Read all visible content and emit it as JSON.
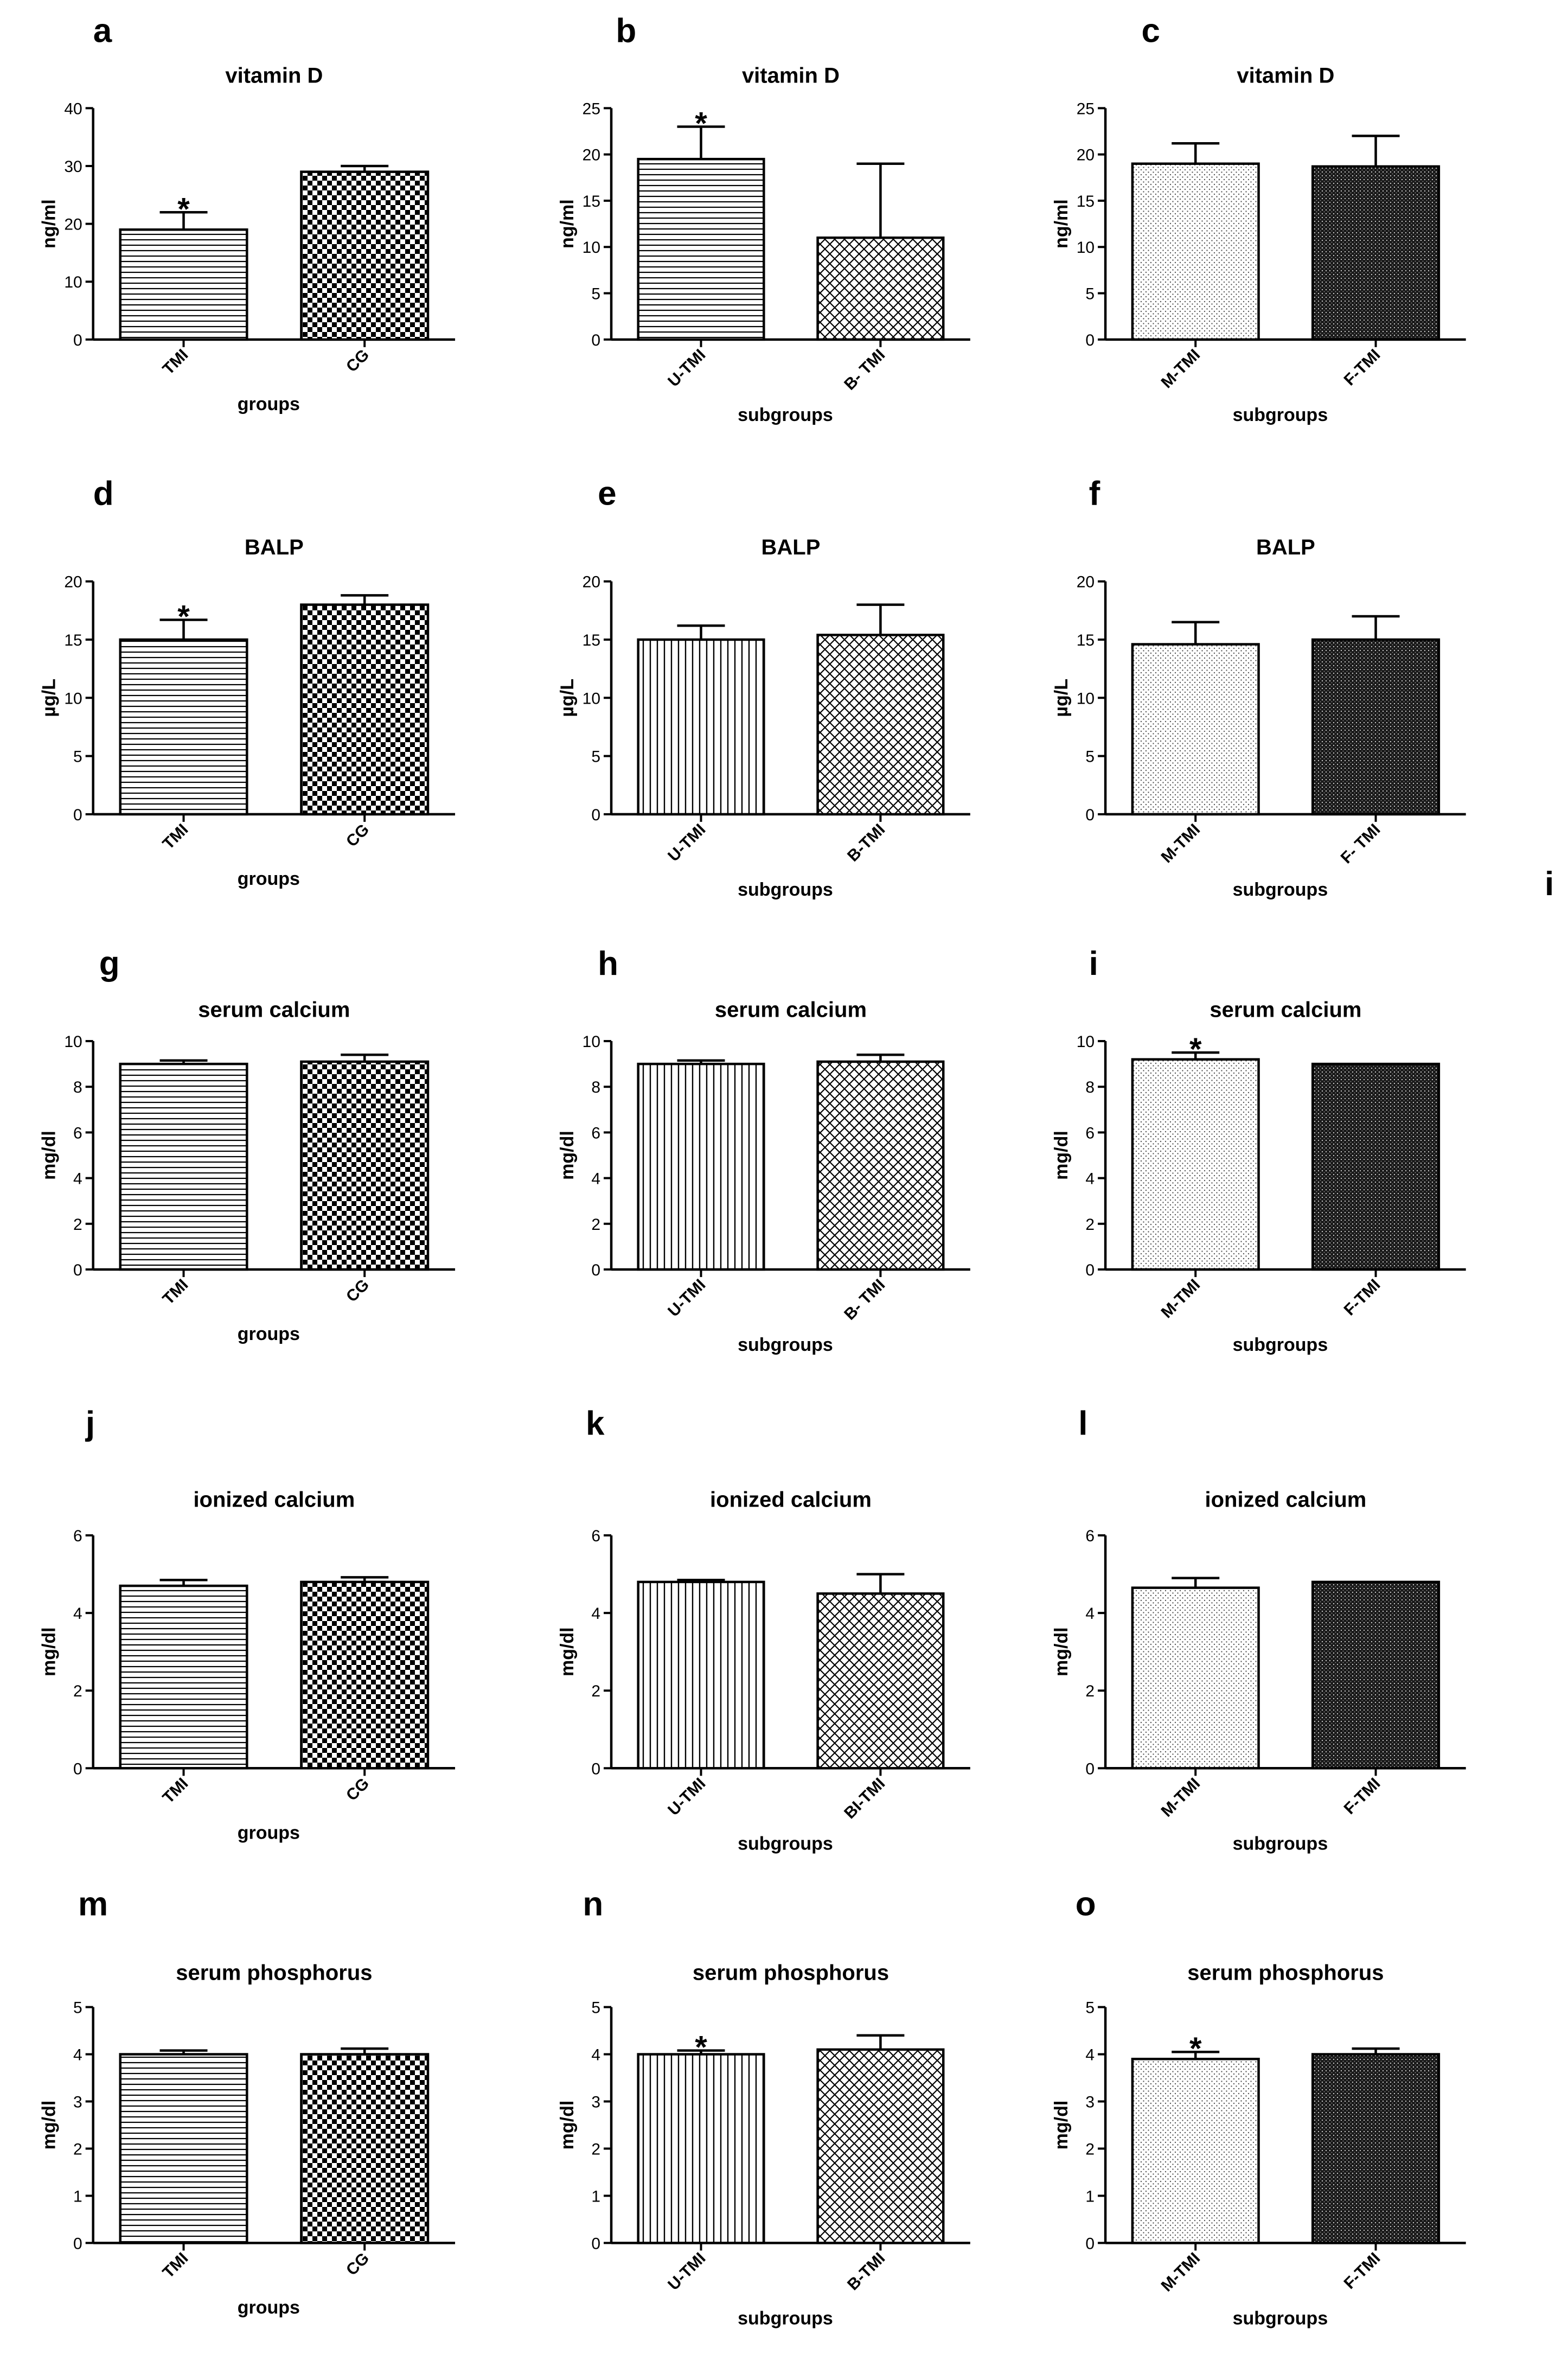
{
  "stray_label": "i",
  "chart_data": [
    {
      "panel": "a",
      "type": "bar",
      "title": "vitamin D",
      "ylabel": "ng/ml",
      "xlabel": "groups",
      "categories": [
        "TMI",
        "CG"
      ],
      "values": [
        19,
        29
      ],
      "errors": [
        3,
        1
      ],
      "significant": [
        true,
        false
      ],
      "ylim": [
        0,
        40
      ],
      "yticks": [
        0,
        10,
        20,
        30,
        40
      ],
      "patterns": [
        "hstripe",
        "check"
      ]
    },
    {
      "panel": "b",
      "type": "bar",
      "title": "vitamin D",
      "ylabel": "ng/ml",
      "xlabel": "subgroups",
      "categories": [
        "U-TMI",
        "B- TMI"
      ],
      "values": [
        19.5,
        11
      ],
      "errors": [
        3.5,
        8
      ],
      "significant": [
        true,
        false
      ],
      "ylim": [
        0,
        25
      ],
      "yticks": [
        0,
        5,
        10,
        15,
        20,
        25
      ],
      "patterns": [
        "hstripe",
        "crosshatch"
      ]
    },
    {
      "panel": "c",
      "type": "bar",
      "title": "vitamin D",
      "ylabel": "ng/ml",
      "xlabel": "subgroups",
      "categories": [
        "M-TMI",
        "F-TMI"
      ],
      "values": [
        19,
        18.7
      ],
      "errors": [
        2.2,
        3.3
      ],
      "significant": [
        false,
        false
      ],
      "ylim": [
        0,
        25
      ],
      "yticks": [
        0,
        5,
        10,
        15,
        20,
        25
      ],
      "patterns": [
        "dots",
        "darkdots"
      ]
    },
    {
      "panel": "d",
      "type": "bar",
      "title": "BALP",
      "ylabel": "µg/L",
      "xlabel": "groups",
      "categories": [
        "TMI",
        "CG"
      ],
      "values": [
        15,
        18
      ],
      "errors": [
        1.7,
        0.8
      ],
      "significant": [
        true,
        false
      ],
      "ylim": [
        0,
        20
      ],
      "yticks": [
        0,
        5,
        10,
        15,
        20
      ],
      "patterns": [
        "hstripe",
        "check"
      ]
    },
    {
      "panel": "e",
      "type": "bar",
      "title": "BALP",
      "ylabel": "µg/L",
      "xlabel": "subgroups",
      "categories": [
        "U-TMI",
        "B-TMI"
      ],
      "values": [
        15,
        15.4
      ],
      "errors": [
        1.2,
        2.6
      ],
      "significant": [
        false,
        false
      ],
      "ylim": [
        0,
        20
      ],
      "yticks": [
        0,
        5,
        10,
        15,
        20
      ],
      "patterns": [
        "vstripe",
        "crosshatch"
      ]
    },
    {
      "panel": "f",
      "type": "bar",
      "title": "BALP",
      "ylabel": "µg/L",
      "xlabel": "subgroups",
      "categories": [
        "M-TMI",
        "F- TMI"
      ],
      "values": [
        14.6,
        15
      ],
      "errors": [
        1.9,
        2
      ],
      "significant": [
        false,
        false
      ],
      "ylim": [
        0,
        20
      ],
      "yticks": [
        0,
        5,
        10,
        15,
        20
      ],
      "patterns": [
        "dots",
        "darkdots"
      ]
    },
    {
      "panel": "g",
      "type": "bar",
      "title": "serum calcium",
      "ylabel": "mg/dl",
      "xlabel": "groups",
      "categories": [
        "TMI",
        "CG"
      ],
      "values": [
        9,
        9.1
      ],
      "errors": [
        0.15,
        0.3
      ],
      "significant": [
        false,
        false
      ],
      "ylim": [
        0,
        10
      ],
      "yticks": [
        0,
        2,
        4,
        6,
        8,
        10
      ],
      "patterns": [
        "hstripe",
        "check"
      ]
    },
    {
      "panel": "h",
      "type": "bar",
      "title": "serum calcium",
      "ylabel": "mg/dl",
      "xlabel": "subgroups",
      "categories": [
        "U-TMI",
        "B- TMI"
      ],
      "values": [
        9,
        9.1
      ],
      "errors": [
        0.15,
        0.3
      ],
      "significant": [
        false,
        false
      ],
      "ylim": [
        0,
        10
      ],
      "yticks": [
        0,
        2,
        4,
        6,
        8,
        10
      ],
      "patterns": [
        "vstripe",
        "crosshatch"
      ]
    },
    {
      "panel": "i",
      "type": "bar",
      "title": "serum calcium",
      "ylabel": "mg/dl",
      "xlabel": "subgroups",
      "categories": [
        "M-TMI",
        "F-TMI"
      ],
      "values": [
        9.2,
        9
      ],
      "errors": [
        0.3,
        0
      ],
      "significant": [
        true,
        false
      ],
      "ylim": [
        0,
        10
      ],
      "yticks": [
        0,
        2,
        4,
        6,
        8,
        10
      ],
      "patterns": [
        "dots",
        "darkdots"
      ]
    },
    {
      "panel": "j",
      "type": "bar",
      "title": "ionized calcium",
      "ylabel": "mg/dl",
      "xlabel": "groups",
      "categories": [
        "TMI",
        "CG"
      ],
      "values": [
        4.7,
        4.8
      ],
      "errors": [
        0.15,
        0.12
      ],
      "significant": [
        false,
        false
      ],
      "ylim": [
        0,
        6
      ],
      "yticks": [
        0,
        2,
        4,
        6
      ],
      "patterns": [
        "hstripe",
        "check"
      ]
    },
    {
      "panel": "k",
      "type": "bar",
      "title": "ionized calcium",
      "ylabel": "mg/dl",
      "xlabel": "subgroups",
      "categories": [
        "U-TMI",
        "BI-TMI"
      ],
      "values": [
        4.8,
        4.5
      ],
      "errors": [
        0.05,
        0.5
      ],
      "significant": [
        false,
        false
      ],
      "ylim": [
        0,
        6
      ],
      "yticks": [
        0,
        2,
        4,
        6
      ],
      "patterns": [
        "vstripe",
        "crosshatch"
      ]
    },
    {
      "panel": "l",
      "type": "bar",
      "title": "ionized calcium",
      "ylabel": "mg/dl",
      "xlabel": "subgroups",
      "categories": [
        "M-TMI",
        "F-TMI"
      ],
      "values": [
        4.65,
        4.8
      ],
      "errors": [
        0.25,
        0
      ],
      "significant": [
        false,
        false
      ],
      "ylim": [
        0,
        6
      ],
      "yticks": [
        0,
        2,
        4,
        6
      ],
      "patterns": [
        "dots",
        "darkdots"
      ]
    },
    {
      "panel": "m",
      "type": "bar",
      "title": "serum phosphorus",
      "ylabel": "mg/dl",
      "xlabel": "groups",
      "categories": [
        "TMI",
        "CG"
      ],
      "values": [
        4,
        4
      ],
      "errors": [
        0.08,
        0.12
      ],
      "significant": [
        false,
        false
      ],
      "ylim": [
        0,
        5
      ],
      "yticks": [
        0,
        1,
        2,
        3,
        4,
        5
      ],
      "patterns": [
        "hstripe",
        "check"
      ]
    },
    {
      "panel": "n",
      "type": "bar",
      "title": "serum phosphorus",
      "ylabel": "mg/dl",
      "xlabel": "subgroups",
      "categories": [
        "U-TMI",
        "B-TMI"
      ],
      "values": [
        4,
        4.1
      ],
      "errors": [
        0.08,
        0.3
      ],
      "significant": [
        true,
        false
      ],
      "ylim": [
        0,
        5
      ],
      "yticks": [
        0,
        1,
        2,
        3,
        4,
        5
      ],
      "patterns": [
        "vstripe",
        "crosshatch"
      ]
    },
    {
      "panel": "o",
      "type": "bar",
      "title": "serum phosphorus",
      "ylabel": "mg/dl",
      "xlabel": "subgroups",
      "categories": [
        "M-TMI",
        "F-TMI"
      ],
      "values": [
        3.9,
        4
      ],
      "errors": [
        0.15,
        0.12
      ],
      "significant": [
        true,
        false
      ],
      "ylim": [
        0,
        5
      ],
      "yticks": [
        0,
        1,
        2,
        3,
        4,
        5
      ],
      "patterns": [
        "dots",
        "darkdots"
      ]
    }
  ]
}
